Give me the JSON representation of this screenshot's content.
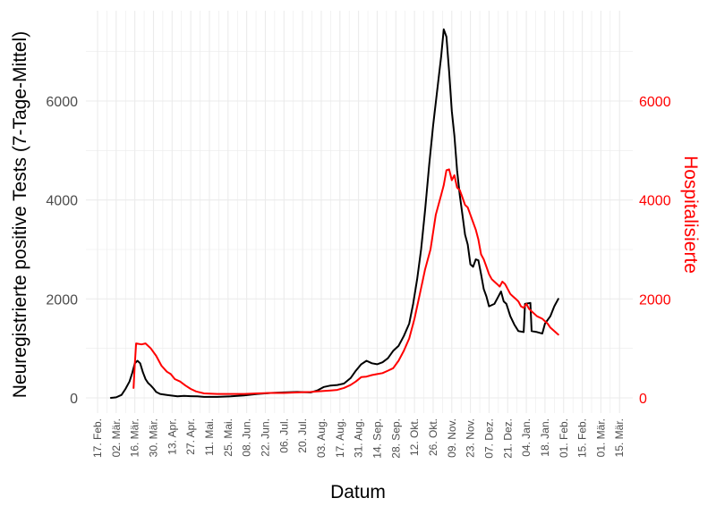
{
  "chart_data": {
    "type": "line",
    "xlabel": "Datum",
    "ylabel": "Neuregistrierte positive Tests (7-Tage-Mittel)",
    "ylabel_right": "Hospitalisierte",
    "ylim": [
      0,
      7700
    ],
    "y_ticks": [
      "0",
      "2000",
      "4000",
      "6000"
    ],
    "y_tick_values": [
      0,
      2000,
      4000,
      6000
    ],
    "y_ticks_right": [
      "0",
      "2000",
      "4000",
      "6000"
    ],
    "x_tick_labels": [
      "17. Feb.",
      "02. Mär.",
      "16. Mär.",
      "30. Mär.",
      "13. Apr.",
      "27. Apr.",
      "11. Mai.",
      "25. Mai.",
      "08. Jun.",
      "22. Jun.",
      "06. Jul.",
      "20. Jul.",
      "03. Aug.",
      "17. Aug.",
      "31. Aug.",
      "14. Sep.",
      "28. Sep.",
      "12. Okt.",
      "26. Okt.",
      "09. Nov.",
      "23. Nov.",
      "07. Dez.",
      "21. Dez.",
      "04. Jan.",
      "18. Jan.",
      "01. Feb.",
      "15. Feb.",
      "01. Mär.",
      "15. Mär."
    ],
    "grid": true,
    "colors": {
      "positive_tests": "#000000",
      "hospitalized": "#ff0000",
      "right_axis": "#ff0000",
      "grid": "#ebebeb"
    },
    "series": [
      {
        "key": "positive_tests",
        "points": [
          [
            10,
            0
          ],
          [
            14,
            10
          ],
          [
            18,
            60
          ],
          [
            21,
            180
          ],
          [
            24,
            330
          ],
          [
            26,
            500
          ],
          [
            28,
            700
          ],
          [
            30,
            750
          ],
          [
            32,
            700
          ],
          [
            34,
            520
          ],
          [
            36,
            380
          ],
          [
            38,
            300
          ],
          [
            40,
            250
          ],
          [
            42,
            190
          ],
          [
            44,
            120
          ],
          [
            47,
            80
          ],
          [
            52,
            60
          ],
          [
            56,
            45
          ],
          [
            60,
            30
          ],
          [
            65,
            40
          ],
          [
            70,
            35
          ],
          [
            75,
            30
          ],
          [
            80,
            20
          ],
          [
            90,
            20
          ],
          [
            100,
            30
          ],
          [
            110,
            50
          ],
          [
            120,
            80
          ],
          [
            130,
            100
          ],
          [
            140,
            110
          ],
          [
            150,
            120
          ],
          [
            160,
            110
          ],
          [
            165,
            150
          ],
          [
            170,
            220
          ],
          [
            175,
            250
          ],
          [
            180,
            260
          ],
          [
            185,
            290
          ],
          [
            190,
            400
          ],
          [
            194,
            550
          ],
          [
            198,
            680
          ],
          [
            202,
            750
          ],
          [
            206,
            700
          ],
          [
            210,
            680
          ],
          [
            214,
            720
          ],
          [
            218,
            800
          ],
          [
            222,
            950
          ],
          [
            226,
            1050
          ],
          [
            230,
            1250
          ],
          [
            234,
            1500
          ],
          [
            237,
            1900
          ],
          [
            240,
            2400
          ],
          [
            243,
            3000
          ],
          [
            246,
            3800
          ],
          [
            249,
            4700
          ],
          [
            252,
            5500
          ],
          [
            255,
            6200
          ],
          [
            258,
            6900
          ],
          [
            260,
            7450
          ],
          [
            262,
            7300
          ],
          [
            264,
            6600
          ],
          [
            266,
            5800
          ],
          [
            268,
            5300
          ],
          [
            270,
            4600
          ],
          [
            272,
            4100
          ],
          [
            274,
            3700
          ],
          [
            276,
            3300
          ],
          [
            278,
            3100
          ],
          [
            280,
            2700
          ],
          [
            282,
            2650
          ],
          [
            284,
            2800
          ],
          [
            286,
            2780
          ],
          [
            288,
            2500
          ],
          [
            290,
            2200
          ],
          [
            292,
            2050
          ],
          [
            294,
            1850
          ],
          [
            298,
            1900
          ],
          [
            300,
            2000
          ],
          [
            303,
            2150
          ],
          [
            305,
            1950
          ],
          [
            307,
            1900
          ],
          [
            310,
            1650
          ],
          [
            313,
            1480
          ],
          [
            316,
            1350
          ],
          [
            320,
            1330
          ],
          [
            321,
            1900
          ],
          [
            325,
            1920
          ],
          [
            326,
            1350
          ],
          [
            330,
            1330
          ],
          [
            334,
            1300
          ],
          [
            336,
            1500
          ],
          [
            340,
            1650
          ],
          [
            343,
            1850
          ],
          [
            346,
            2000
          ]
        ]
      },
      {
        "key": "hospitalized",
        "points": [
          [
            27,
            200
          ],
          [
            28,
            700
          ],
          [
            29,
            1100
          ],
          [
            33,
            1080
          ],
          [
            36,
            1100
          ],
          [
            40,
            1000
          ],
          [
            44,
            850
          ],
          [
            48,
            650
          ],
          [
            52,
            530
          ],
          [
            55,
            480
          ],
          [
            58,
            380
          ],
          [
            62,
            330
          ],
          [
            66,
            250
          ],
          [
            70,
            180
          ],
          [
            74,
            130
          ],
          [
            80,
            90
          ],
          [
            90,
            80
          ],
          [
            100,
            80
          ],
          [
            110,
            80
          ],
          [
            120,
            90
          ],
          [
            130,
            100
          ],
          [
            140,
            100
          ],
          [
            150,
            110
          ],
          [
            160,
            120
          ],
          [
            165,
            130
          ],
          [
            170,
            140
          ],
          [
            175,
            150
          ],
          [
            180,
            160
          ],
          [
            185,
            200
          ],
          [
            190,
            260
          ],
          [
            194,
            330
          ],
          [
            198,
            420
          ],
          [
            202,
            430
          ],
          [
            206,
            460
          ],
          [
            210,
            480
          ],
          [
            214,
            500
          ],
          [
            218,
            550
          ],
          [
            222,
            600
          ],
          [
            226,
            750
          ],
          [
            230,
            950
          ],
          [
            234,
            1200
          ],
          [
            238,
            1600
          ],
          [
            242,
            2100
          ],
          [
            246,
            2600
          ],
          [
            250,
            3000
          ],
          [
            254,
            3700
          ],
          [
            258,
            4100
          ],
          [
            260,
            4300
          ],
          [
            262,
            4600
          ],
          [
            264,
            4620
          ],
          [
            266,
            4400
          ],
          [
            268,
            4500
          ],
          [
            270,
            4250
          ],
          [
            272,
            4200
          ],
          [
            274,
            4050
          ],
          [
            276,
            3900
          ],
          [
            278,
            3850
          ],
          [
            280,
            3700
          ],
          [
            282,
            3550
          ],
          [
            284,
            3400
          ],
          [
            286,
            3200
          ],
          [
            288,
            2900
          ],
          [
            290,
            2800
          ],
          [
            292,
            2650
          ],
          [
            294,
            2500
          ],
          [
            296,
            2400
          ],
          [
            298,
            2350
          ],
          [
            300,
            2300
          ],
          [
            302,
            2250
          ],
          [
            304,
            2350
          ],
          [
            306,
            2300
          ],
          [
            308,
            2200
          ],
          [
            310,
            2100
          ],
          [
            312,
            2050
          ],
          [
            314,
            2000
          ],
          [
            316,
            1950
          ],
          [
            318,
            1850
          ],
          [
            320,
            1820
          ],
          [
            322,
            1900
          ],
          [
            324,
            1800
          ],
          [
            326,
            1750
          ],
          [
            330,
            1650
          ],
          [
            334,
            1600
          ],
          [
            336,
            1550
          ],
          [
            338,
            1500
          ],
          [
            340,
            1420
          ],
          [
            343,
            1350
          ],
          [
            346,
            1280
          ]
        ]
      }
    ]
  }
}
